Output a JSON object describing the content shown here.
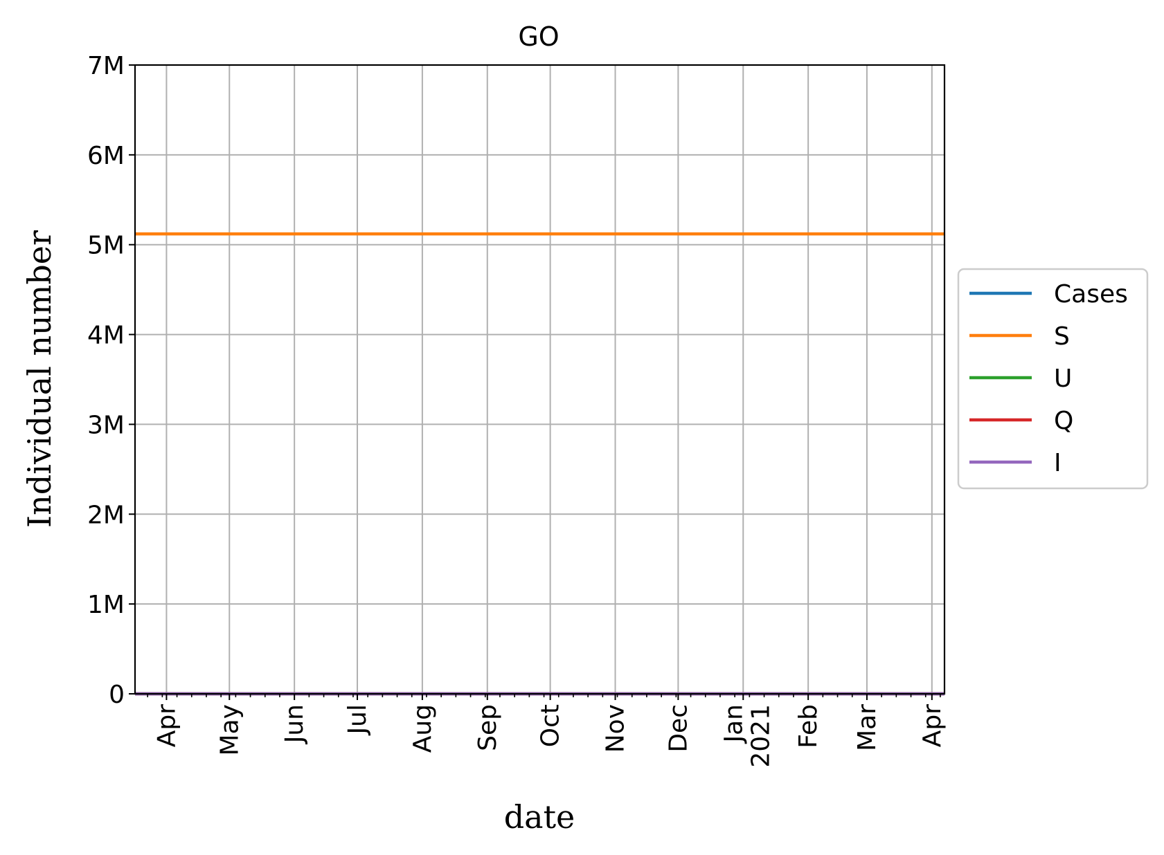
{
  "chart_data": {
    "type": "line",
    "title": "GO",
    "xlabel": "date",
    "ylabel": "Individual number",
    "xlim": [
      "2020-03-17",
      "2021-04-07"
    ],
    "ylim": [
      0,
      7000000
    ],
    "grid": true,
    "legend_position": "right, outside plot",
    "y_ticks": [
      {
        "value": 0,
        "label": "0"
      },
      {
        "value": 1000000,
        "label": "1M"
      },
      {
        "value": 2000000,
        "label": "2M"
      },
      {
        "value": 3000000,
        "label": "3M"
      },
      {
        "value": 4000000,
        "label": "4M"
      },
      {
        "value": 5000000,
        "label": "5M"
      },
      {
        "value": 6000000,
        "label": "6M"
      },
      {
        "value": 7000000,
        "label": "7M"
      }
    ],
    "x_ticks": [
      {
        "date": "2020-04-01",
        "label": "Apr"
      },
      {
        "date": "2020-05-01",
        "label": "May"
      },
      {
        "date": "2020-06-01",
        "label": "Jun"
      },
      {
        "date": "2020-07-01",
        "label": "Jul"
      },
      {
        "date": "2020-08-01",
        "label": "Aug"
      },
      {
        "date": "2020-09-01",
        "label": "Sep"
      },
      {
        "date": "2020-10-01",
        "label": "Oct"
      },
      {
        "date": "2020-11-01",
        "label": "Nov"
      },
      {
        "date": "2020-12-01",
        "label": "Dec"
      },
      {
        "date": "2021-01-01",
        "label": "Jan",
        "label2": "2021"
      },
      {
        "date": "2021-02-01",
        "label": "Feb"
      },
      {
        "date": "2021-03-01",
        "label": "Mar"
      },
      {
        "date": "2021-04-01",
        "label": "Apr"
      }
    ],
    "series": [
      {
        "name": "Cases",
        "color": "#1f77b4",
        "x": [
          "2020-03-17",
          "2021-04-07"
        ],
        "y": [
          0,
          0
        ]
      },
      {
        "name": "S",
        "color": "#ff7f0e",
        "x": [
          "2020-03-17",
          "2021-04-07"
        ],
        "y": [
          5120000,
          5120000
        ]
      },
      {
        "name": "U",
        "color": "#2ca02c",
        "x": [
          "2020-03-17",
          "2021-04-07"
        ],
        "y": [
          0,
          0
        ]
      },
      {
        "name": "Q",
        "color": "#d62728",
        "x": [
          "2020-03-17",
          "2021-04-07"
        ],
        "y": [
          0,
          0
        ]
      },
      {
        "name": "I",
        "color": "#9467bd",
        "x": [
          "2020-03-17",
          "2021-04-07"
        ],
        "y": [
          0,
          0
        ]
      }
    ]
  }
}
